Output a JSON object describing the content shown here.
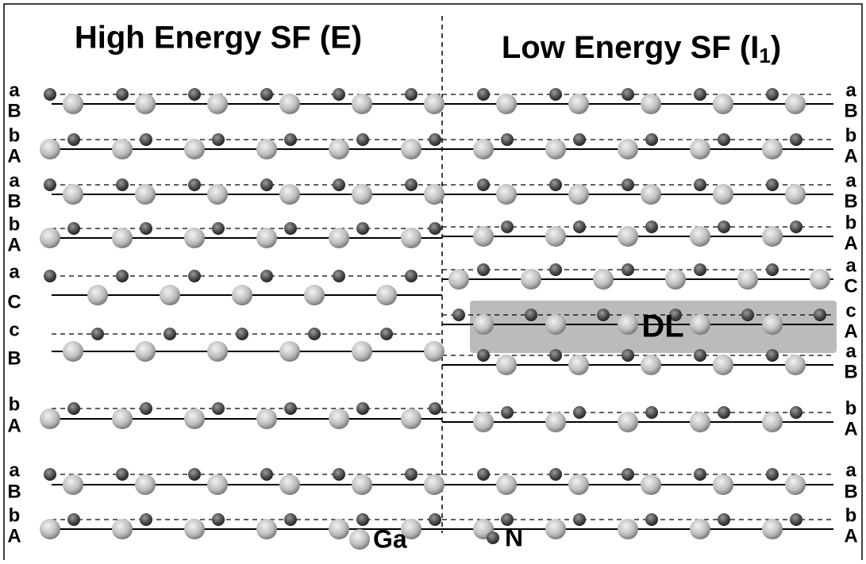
{
  "titles": {
    "left": "High Energy SF (E)",
    "right": {
      "text": "Low Energy SF (I",
      "subscript": "1",
      "suffix": ")"
    }
  },
  "layers": {
    "left": [
      {
        "upper": "a",
        "lower": "B"
      },
      {
        "upper": "b",
        "lower": "A"
      },
      {
        "upper": "a",
        "lower": "B"
      },
      {
        "upper": "b",
        "lower": "A"
      },
      {
        "upper": "a",
        "lower": "C"
      },
      {
        "upper": "c",
        "lower": "B"
      },
      {
        "upper": "b",
        "lower": "A"
      },
      {
        "upper": "a",
        "lower": "B"
      },
      {
        "upper": "b",
        "lower": "A"
      }
    ],
    "right": [
      {
        "upper": "a",
        "lower": "B"
      },
      {
        "upper": "b",
        "lower": "A"
      },
      {
        "upper": "a",
        "lower": "B"
      },
      {
        "upper": "b",
        "lower": "A"
      },
      {
        "upper": "a",
        "lower": "C"
      },
      {
        "upper": "c",
        "lower": "A"
      },
      {
        "upper": "a",
        "lower": "B"
      },
      {
        "upper": "b",
        "lower": "A"
      },
      {
        "upper": "a",
        "lower": "B"
      },
      {
        "upper": "b",
        "lower": "A"
      }
    ]
  },
  "defect_label": "DL",
  "legend": {
    "ga": "Ga",
    "n": "N"
  }
}
